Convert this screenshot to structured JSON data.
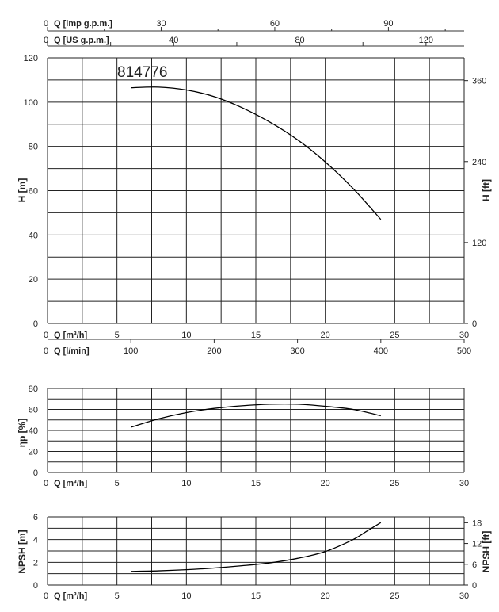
{
  "chart_data": [
    {
      "id": "head",
      "type": "line",
      "model_label": "814776",
      "x": [
        6,
        8,
        10,
        12,
        14,
        16,
        18,
        20,
        22,
        24
      ],
      "series": [
        {
          "values": [
            106.5,
            106.8,
            105.5,
            102.5,
            97.5,
            91,
            83,
            73,
            61,
            47
          ]
        }
      ],
      "xlim": [
        0,
        30
      ],
      "ylim": [
        0,
        120
      ],
      "ylabel": "H [m]",
      "y2label": "H [ft]",
      "y_ticks": [
        "0",
        "20",
        "40",
        "60",
        "80",
        "100",
        "120"
      ],
      "y2_ticks": [
        "0",
        "120",
        "240",
        "360"
      ],
      "x_ticks": [
        "5",
        "10",
        "15",
        "20",
        "25",
        "30"
      ],
      "top_axes": [
        {
          "label": "Q [imp g.p.m.]",
          "zero": "0",
          "ticks": [
            "30",
            "60",
            "90"
          ]
        },
        {
          "label": "Q [US g.p.m.]",
          "zero": "0",
          "ticks": [
            "40",
            "80",
            "120"
          ]
        }
      ],
      "bottom_axes": [
        {
          "label": "Q [m³/h]",
          "zero": "0",
          "ticks": [
            "5",
            "10",
            "15",
            "20",
            "25",
            "30"
          ]
        },
        {
          "label": "Q [l/min]",
          "zero": "0",
          "ticks": [
            "100",
            "200",
            "300",
            "400",
            "500"
          ]
        }
      ],
      "grid": true
    },
    {
      "id": "efficiency",
      "type": "line",
      "x": [
        6,
        8,
        10,
        12,
        14,
        16,
        18,
        20,
        22,
        24
      ],
      "series": [
        {
          "values": [
            43,
            51,
            57,
            61,
            63.5,
            65,
            65,
            63,
            60,
            54
          ]
        }
      ],
      "xlim": [
        0,
        30
      ],
      "ylim": [
        0,
        80
      ],
      "ylabel": "ηp [%]",
      "y_ticks": [
        "0",
        "20",
        "40",
        "60",
        "80"
      ],
      "x_ticks": [
        "5",
        "10",
        "15",
        "20",
        "25",
        "30"
      ],
      "xlabel": "Q [m³/h]",
      "zero": "0",
      "grid": true
    },
    {
      "id": "npsh",
      "type": "line",
      "x": [
        6,
        8,
        10,
        12,
        14,
        16,
        18,
        20,
        22,
        23,
        24
      ],
      "series": [
        {
          "values": [
            1.2,
            1.25,
            1.35,
            1.5,
            1.7,
            1.95,
            2.35,
            2.95,
            4.0,
            4.75,
            5.5
          ]
        }
      ],
      "xlim": [
        0,
        30
      ],
      "ylim": [
        0,
        6
      ],
      "ylabel": "NPSH [m]",
      "y2label": "NPSH [ft]",
      "y_ticks": [
        "0",
        "2",
        "4",
        "6"
      ],
      "y2_ticks": [
        "0",
        "6",
        "12",
        "18"
      ],
      "x_ticks": [
        "5",
        "10",
        "15",
        "20",
        "25",
        "30"
      ],
      "xlabel": "Q [m³/h]",
      "zero": "0",
      "grid": true
    }
  ]
}
